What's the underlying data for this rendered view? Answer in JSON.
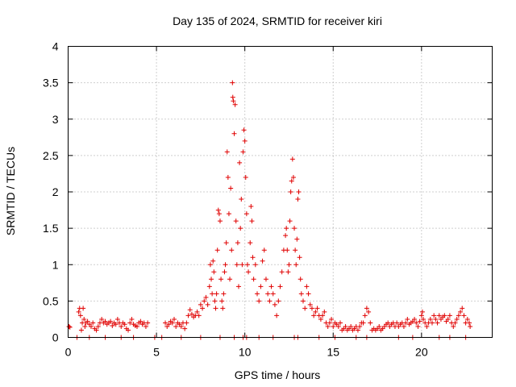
{
  "chart_data": {
    "type": "scatter",
    "title": "Day 135 of 2024, SRMTID for receiver kiri",
    "xlabel": "GPS time / hours",
    "ylabel": "SRMTID / TECUs",
    "xlim": [
      0,
      24
    ],
    "ylim": [
      0,
      4
    ],
    "grid": true,
    "marker": "+",
    "marker_color": "#e00000",
    "x_ticks": [
      0,
      5,
      10,
      15,
      20
    ],
    "x_tick_labels": [
      "0",
      "5",
      "10",
      "15",
      "20"
    ],
    "y_ticks": [
      0,
      0.5,
      1,
      1.5,
      2,
      2.5,
      3,
      3.5,
      4
    ],
    "y_tick_labels": [
      "0",
      "0.5",
      "1",
      "1.5",
      "2",
      "2.5",
      "3",
      "3.5",
      "4"
    ],
    "series": [
      {
        "name": "SRMTID",
        "points": [
          [
            0.05,
            0.15
          ],
          [
            0.1,
            0.14
          ],
          [
            0.5,
            0.0
          ],
          [
            0.6,
            0.35
          ],
          [
            0.65,
            0.4
          ],
          [
            0.7,
            0.3
          ],
          [
            0.75,
            0.1
          ],
          [
            0.8,
            0.2
          ],
          [
            0.85,
            0.4
          ],
          [
            0.9,
            0.25
          ],
          [
            0.95,
            0.15
          ],
          [
            1.0,
            0.2
          ],
          [
            1.1,
            0.22
          ],
          [
            1.2,
            0.18
          ],
          [
            1.3,
            0.15
          ],
          [
            1.4,
            0.2
          ],
          [
            1.5,
            0.12
          ],
          [
            1.6,
            0.1
          ],
          [
            1.7,
            0.15
          ],
          [
            1.8,
            0.2
          ],
          [
            1.9,
            0.25
          ],
          [
            2.0,
            0.2
          ],
          [
            2.1,
            0.22
          ],
          [
            2.2,
            0.18
          ],
          [
            2.3,
            0.2
          ],
          [
            2.4,
            0.22
          ],
          [
            2.5,
            0.16
          ],
          [
            2.6,
            0.2
          ],
          [
            2.7,
            0.18
          ],
          [
            2.8,
            0.25
          ],
          [
            2.9,
            0.2
          ],
          [
            3.0,
            0.15
          ],
          [
            3.1,
            0.2
          ],
          [
            3.2,
            0.18
          ],
          [
            3.3,
            0.12
          ],
          [
            3.4,
            0.1
          ],
          [
            3.5,
            0.2
          ],
          [
            3.6,
            0.25
          ],
          [
            3.7,
            0.18
          ],
          [
            3.8,
            0.16
          ],
          [
            3.9,
            0.15
          ],
          [
            4.0,
            0.2
          ],
          [
            4.1,
            0.22
          ],
          [
            4.2,
            0.18
          ],
          [
            4.3,
            0.2
          ],
          [
            4.4,
            0.15
          ],
          [
            4.5,
            0.2
          ],
          [
            1.2,
            0.0
          ],
          [
            2.1,
            0.0
          ],
          [
            3.0,
            0.0
          ],
          [
            3.7,
            0.0
          ],
          [
            4.9,
            0.0
          ],
          [
            5.3,
            0.0
          ],
          [
            5.5,
            0.2
          ],
          [
            5.6,
            0.15
          ],
          [
            5.7,
            0.18
          ],
          [
            5.8,
            0.22
          ],
          [
            5.9,
            0.2
          ],
          [
            6.0,
            0.25
          ],
          [
            6.1,
            0.15
          ],
          [
            6.2,
            0.2
          ],
          [
            6.3,
            0.18
          ],
          [
            6.4,
            0.15
          ],
          [
            6.5,
            0.2
          ],
          [
            6.6,
            0.12
          ],
          [
            6.7,
            0.2
          ],
          [
            6.8,
            0.3
          ],
          [
            6.9,
            0.38
          ],
          [
            7.0,
            0.32
          ],
          [
            7.1,
            0.28
          ],
          [
            7.2,
            0.3
          ],
          [
            7.3,
            0.35
          ],
          [
            7.4,
            0.3
          ],
          [
            7.5,
            0.45
          ],
          [
            7.6,
            0.4
          ],
          [
            7.7,
            0.5
          ],
          [
            7.8,
            0.55
          ],
          [
            7.9,
            0.45
          ],
          [
            8.0,
            0.7
          ],
          [
            8.05,
            1.0
          ],
          [
            8.1,
            0.8
          ],
          [
            8.15,
            0.6
          ],
          [
            8.2,
            1.05
          ],
          [
            8.25,
            0.9
          ],
          [
            8.3,
            0.5
          ],
          [
            8.35,
            0.4
          ],
          [
            8.4,
            0.6
          ],
          [
            8.45,
            1.2
          ],
          [
            8.5,
            1.75
          ],
          [
            8.55,
            1.7
          ],
          [
            8.6,
            1.6
          ],
          [
            8.65,
            0.8
          ],
          [
            8.7,
            0.5
          ],
          [
            8.75,
            0.4
          ],
          [
            8.8,
            0.6
          ],
          [
            8.85,
            0.9
          ],
          [
            8.9,
            1.0
          ],
          [
            8.95,
            1.3
          ],
          [
            9.0,
            2.55
          ],
          [
            9.05,
            2.2
          ],
          [
            9.1,
            1.7
          ],
          [
            9.15,
            0.8
          ],
          [
            9.2,
            2.05
          ],
          [
            9.25,
            1.2
          ],
          [
            9.3,
            3.5
          ],
          [
            9.32,
            3.3
          ],
          [
            9.35,
            3.25
          ],
          [
            9.4,
            2.8
          ],
          [
            9.45,
            3.2
          ],
          [
            9.5,
            1.6
          ],
          [
            9.55,
            1.0
          ],
          [
            9.6,
            1.3
          ],
          [
            9.65,
            0.7
          ],
          [
            9.7,
            2.4
          ],
          [
            9.75,
            1.5
          ],
          [
            9.8,
            1.9
          ],
          [
            9.85,
            1.0
          ],
          [
            9.9,
            2.55
          ],
          [
            9.95,
            2.85
          ],
          [
            10.0,
            2.7
          ],
          [
            10.05,
            2.2
          ],
          [
            10.1,
            1.7
          ],
          [
            10.15,
            1.0
          ],
          [
            10.2,
            0.9
          ],
          [
            10.3,
            1.3
          ],
          [
            10.35,
            1.8
          ],
          [
            10.4,
            1.6
          ],
          [
            10.45,
            1.1
          ],
          [
            10.5,
            0.8
          ],
          [
            10.6,
            1.0
          ],
          [
            10.7,
            0.6
          ],
          [
            10.8,
            0.5
          ],
          [
            10.9,
            0.7
          ],
          [
            11.0,
            1.05
          ],
          [
            11.1,
            1.2
          ],
          [
            11.2,
            0.8
          ],
          [
            11.3,
            0.6
          ],
          [
            11.4,
            0.5
          ],
          [
            11.5,
            0.7
          ],
          [
            11.6,
            0.6
          ],
          [
            11.7,
            0.45
          ],
          [
            11.8,
            0.3
          ],
          [
            11.9,
            0.5
          ],
          [
            12.0,
            0.7
          ],
          [
            12.1,
            0.9
          ],
          [
            12.2,
            1.2
          ],
          [
            12.3,
            1.4
          ],
          [
            12.35,
            1.5
          ],
          [
            12.4,
            1.2
          ],
          [
            12.45,
            0.9
          ],
          [
            12.5,
            1.0
          ],
          [
            12.55,
            1.6
          ],
          [
            12.6,
            2.0
          ],
          [
            12.65,
            2.15
          ],
          [
            12.7,
            2.45
          ],
          [
            12.75,
            2.2
          ],
          [
            12.8,
            1.5
          ],
          [
            12.85,
            1.2
          ],
          [
            12.9,
            1.0
          ],
          [
            12.95,
            1.35
          ],
          [
            13.0,
            1.9
          ],
          [
            13.05,
            2.0
          ],
          [
            13.1,
            1.1
          ],
          [
            13.15,
            0.8
          ],
          [
            13.2,
            0.6
          ],
          [
            13.3,
            0.5
          ],
          [
            13.4,
            0.4
          ],
          [
            13.5,
            0.7
          ],
          [
            13.6,
            0.6
          ],
          [
            13.7,
            0.45
          ],
          [
            13.8,
            0.4
          ],
          [
            13.9,
            0.3
          ],
          [
            14.0,
            0.35
          ],
          [
            14.1,
            0.4
          ],
          [
            14.2,
            0.3
          ],
          [
            14.3,
            0.25
          ],
          [
            14.4,
            0.3
          ],
          [
            14.5,
            0.35
          ],
          [
            14.6,
            0.2
          ],
          [
            14.7,
            0.15
          ],
          [
            14.8,
            0.2
          ],
          [
            14.9,
            0.25
          ],
          [
            15.0,
            0.15
          ],
          [
            15.1,
            0.2
          ],
          [
            15.2,
            0.18
          ],
          [
            15.3,
            0.15
          ],
          [
            15.4,
            0.2
          ],
          [
            15.5,
            0.1
          ],
          [
            15.6,
            0.12
          ],
          [
            15.7,
            0.15
          ],
          [
            15.8,
            0.1
          ],
          [
            15.9,
            0.12
          ],
          [
            16.0,
            0.15
          ],
          [
            16.1,
            0.1
          ],
          [
            16.2,
            0.12
          ],
          [
            16.3,
            0.15
          ],
          [
            16.4,
            0.1
          ],
          [
            16.5,
            0.15
          ],
          [
            16.6,
            0.2
          ],
          [
            16.7,
            0.2
          ],
          [
            16.8,
            0.3
          ],
          [
            16.9,
            0.4
          ],
          [
            17.0,
            0.35
          ],
          [
            17.1,
            0.2
          ],
          [
            17.2,
            0.1
          ],
          [
            17.3,
            0.12
          ],
          [
            17.4,
            0.1
          ],
          [
            17.5,
            0.12
          ],
          [
            17.6,
            0.15
          ],
          [
            17.7,
            0.1
          ],
          [
            17.8,
            0.12
          ],
          [
            17.9,
            0.15
          ],
          [
            18.0,
            0.18
          ],
          [
            18.1,
            0.2
          ],
          [
            18.2,
            0.15
          ],
          [
            18.3,
            0.18
          ],
          [
            18.4,
            0.2
          ],
          [
            18.5,
            0.15
          ],
          [
            18.6,
            0.2
          ],
          [
            18.7,
            0.15
          ],
          [
            18.8,
            0.18
          ],
          [
            18.9,
            0.2
          ],
          [
            19.0,
            0.15
          ],
          [
            19.1,
            0.2
          ],
          [
            19.2,
            0.25
          ],
          [
            19.3,
            0.18
          ],
          [
            19.4,
            0.2
          ],
          [
            19.5,
            0.22
          ],
          [
            19.6,
            0.25
          ],
          [
            19.7,
            0.2
          ],
          [
            19.8,
            0.15
          ],
          [
            19.9,
            0.22
          ],
          [
            20.0,
            0.3
          ],
          [
            20.05,
            0.35
          ],
          [
            20.1,
            0.25
          ],
          [
            20.2,
            0.2
          ],
          [
            20.3,
            0.15
          ],
          [
            20.4,
            0.2
          ],
          [
            20.5,
            0.25
          ],
          [
            20.6,
            0.2
          ],
          [
            20.7,
            0.3
          ],
          [
            20.8,
            0.25
          ],
          [
            20.9,
            0.2
          ],
          [
            21.0,
            0.3
          ],
          [
            21.1,
            0.25
          ],
          [
            21.2,
            0.28
          ],
          [
            21.3,
            0.3
          ],
          [
            21.4,
            0.22
          ],
          [
            21.5,
            0.25
          ],
          [
            21.6,
            0.3
          ],
          [
            21.7,
            0.2
          ],
          [
            21.8,
            0.15
          ],
          [
            21.9,
            0.2
          ],
          [
            22.0,
            0.25
          ],
          [
            22.1,
            0.3
          ],
          [
            22.2,
            0.35
          ],
          [
            22.3,
            0.4
          ],
          [
            22.4,
            0.3
          ],
          [
            22.5,
            0.2
          ],
          [
            22.6,
            0.25
          ],
          [
            22.7,
            0.2
          ],
          [
            22.75,
            0.15
          ],
          [
            6.4,
            0.0
          ],
          [
            7.5,
            0.0
          ],
          [
            8.6,
            0.0
          ],
          [
            9.4,
            0.0
          ],
          [
            9.9,
            0.0
          ],
          [
            10.1,
            0.0
          ],
          [
            10.8,
            0.0
          ],
          [
            11.6,
            0.0
          ],
          [
            12.8,
            0.0
          ],
          [
            13.0,
            0.0
          ],
          [
            14.2,
            0.0
          ],
          [
            15.1,
            0.0
          ],
          [
            16.3,
            0.0
          ],
          [
            16.9,
            0.0
          ],
          [
            18.7,
            0.0
          ],
          [
            19.5,
            0.0
          ],
          [
            21.0,
            0.0
          ],
          [
            21.6,
            0.0
          ],
          [
            22.5,
            0.0
          ]
        ]
      }
    ]
  }
}
